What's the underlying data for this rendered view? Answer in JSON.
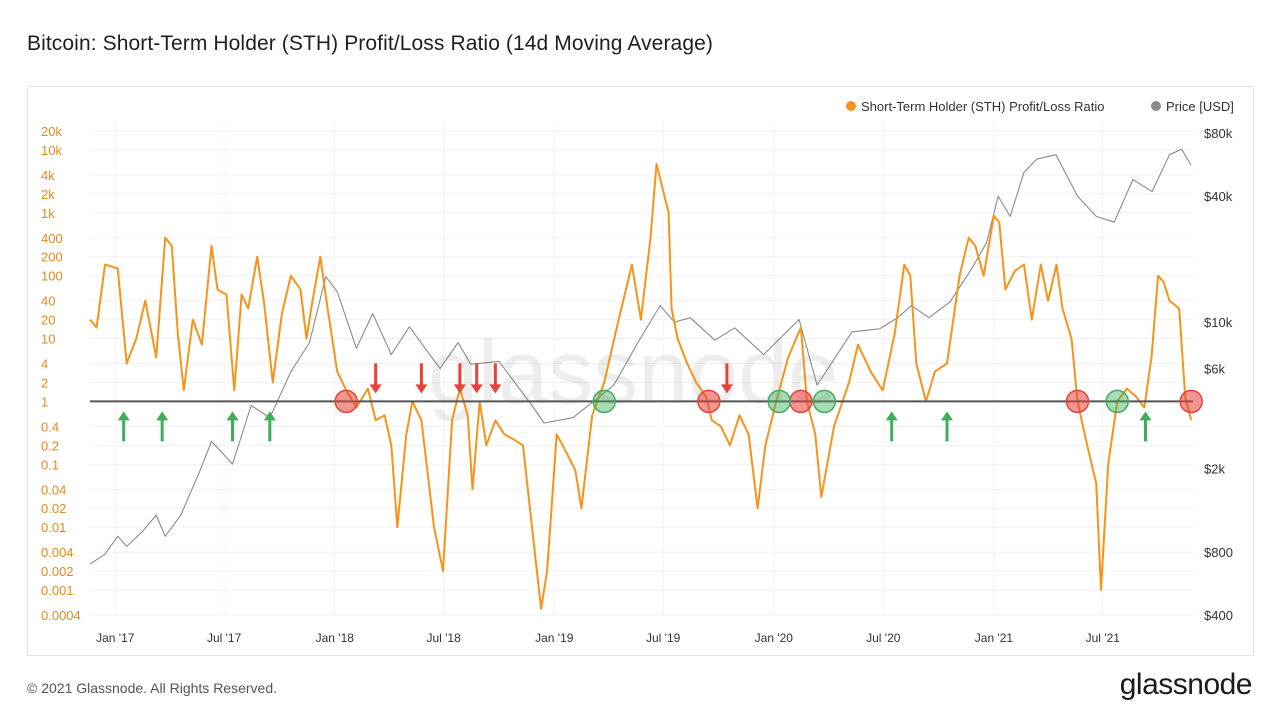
{
  "title": "Bitcoin: Short-Term Holder (STH) Profit/Loss Ratio (14d Moving Average)",
  "footer": "© 2021 Glassnode. All Rights Reserved.",
  "brand": "glassnode",
  "watermark": "glassnode",
  "colors": {
    "sth": "#f7931a",
    "price": "#8a8a8a",
    "baseline": "#555555",
    "red_marker": "#e8403a",
    "green_marker": "#3fae5a"
  },
  "chart_data": {
    "type": "line",
    "legend_position": "top-right",
    "grid": true,
    "left_axis": {
      "scale": "log",
      "ticks": [
        0.0004,
        0.001,
        0.002,
        0.004,
        0.01,
        0.02,
        0.04,
        0.1,
        0.2,
        0.4,
        1,
        2,
        4,
        10,
        20,
        40,
        100,
        200,
        400,
        1000,
        2000,
        4000,
        10000,
        20000
      ],
      "tick_labels": [
        "0.0004",
        "0.001",
        "0.002",
        "0.004",
        "0.01",
        "0.02",
        "0.04",
        "0.1",
        "0.2",
        "0.4",
        "1",
        "2",
        "4",
        "10",
        "20",
        "40",
        "100",
        "200",
        "400",
        "1k",
        "2k",
        "4k",
        "10k",
        "20k"
      ]
    },
    "right_axis": {
      "scale": "log",
      "ticks": [
        400,
        800,
        2000,
        6000,
        10000,
        40000,
        80000
      ],
      "tick_labels": [
        "$400",
        "$800",
        "$2k",
        "$6k",
        "$10k",
        "$40k",
        "$80k"
      ]
    },
    "x_axis": {
      "ticks": [
        "2017-01-01",
        "2017-07-01",
        "2018-01-01",
        "2018-07-01",
        "2019-01-01",
        "2019-07-01",
        "2020-01-01",
        "2020-07-01",
        "2021-01-01",
        "2021-07-01"
      ],
      "tick_labels": [
        "Jan '17",
        "Jul '17",
        "Jan '18",
        "Jul '18",
        "Jan '19",
        "Jul '19",
        "Jan '20",
        "Jul '20",
        "Jan '21",
        "Jul '21"
      ]
    },
    "series": [
      {
        "name": "Short-Term Holder (STH) Profit/Loss Ratio",
        "axis": "left",
        "points": [
          [
            "2016-11-20",
            20
          ],
          [
            "2016-12-01",
            15
          ],
          [
            "2016-12-15",
            150
          ],
          [
            "2017-01-05",
            130
          ],
          [
            "2017-01-20",
            4
          ],
          [
            "2017-02-05",
            10
          ],
          [
            "2017-02-20",
            40
          ],
          [
            "2017-03-10",
            5
          ],
          [
            "2017-03-25",
            400
          ],
          [
            "2017-04-05",
            300
          ],
          [
            "2017-04-15",
            12
          ],
          [
            "2017-04-25",
            1.5
          ],
          [
            "2017-05-10",
            20
          ],
          [
            "2017-05-25",
            8
          ],
          [
            "2017-06-10",
            300
          ],
          [
            "2017-06-20",
            60
          ],
          [
            "2017-07-05",
            50
          ],
          [
            "2017-07-18",
            1.5
          ],
          [
            "2017-07-30",
            50
          ],
          [
            "2017-08-10",
            30
          ],
          [
            "2017-08-25",
            200
          ],
          [
            "2017-09-05",
            40
          ],
          [
            "2017-09-20",
            2
          ],
          [
            "2017-10-05",
            25
          ],
          [
            "2017-10-20",
            100
          ],
          [
            "2017-11-05",
            60
          ],
          [
            "2017-11-15",
            10
          ],
          [
            "2017-11-25",
            40
          ],
          [
            "2017-12-08",
            200
          ],
          [
            "2017-12-20",
            30
          ],
          [
            "2018-01-05",
            3
          ],
          [
            "2018-01-20",
            1.5
          ],
          [
            "2018-02-06",
            0.8
          ],
          [
            "2018-02-25",
            1.6
          ],
          [
            "2018-03-10",
            0.5
          ],
          [
            "2018-03-25",
            0.6
          ],
          [
            "2018-04-05",
            0.2
          ],
          [
            "2018-04-15",
            0.01
          ],
          [
            "2018-04-30",
            0.3
          ],
          [
            "2018-05-10",
            1
          ],
          [
            "2018-05-25",
            0.5
          ],
          [
            "2018-06-15",
            0.01
          ],
          [
            "2018-06-30",
            0.002
          ],
          [
            "2018-07-15",
            0.5
          ],
          [
            "2018-07-28",
            1.6
          ],
          [
            "2018-08-10",
            0.6
          ],
          [
            "2018-08-18",
            0.04
          ],
          [
            "2018-08-30",
            1
          ],
          [
            "2018-09-10",
            0.2
          ],
          [
            "2018-09-25",
            0.5
          ],
          [
            "2018-10-10",
            0.3
          ],
          [
            "2018-10-25",
            0.25
          ],
          [
            "2018-11-10",
            0.2
          ],
          [
            "2018-11-25",
            0.01
          ],
          [
            "2018-12-10",
            0.0005
          ],
          [
            "2018-12-20",
            0.002
          ],
          [
            "2019-01-05",
            0.3
          ],
          [
            "2019-01-15",
            0.2
          ],
          [
            "2019-02-05",
            0.08
          ],
          [
            "2019-02-15",
            0.02
          ],
          [
            "2019-03-05",
            0.6
          ],
          [
            "2019-03-25",
            2
          ],
          [
            "2019-04-15",
            15
          ],
          [
            "2019-05-10",
            150
          ],
          [
            "2019-05-25",
            20
          ],
          [
            "2019-06-10",
            400
          ],
          [
            "2019-06-20",
            6000
          ],
          [
            "2019-07-10",
            1000
          ],
          [
            "2019-07-15",
            30
          ],
          [
            "2019-07-25",
            10
          ],
          [
            "2019-08-10",
            4
          ],
          [
            "2019-08-25",
            2
          ],
          [
            "2019-09-10",
            1.2
          ],
          [
            "2019-09-20",
            0.5
          ],
          [
            "2019-10-05",
            0.4
          ],
          [
            "2019-10-20",
            0.2
          ],
          [
            "2019-11-05",
            0.6
          ],
          [
            "2019-11-20",
            0.3
          ],
          [
            "2019-12-05",
            0.02
          ],
          [
            "2019-12-18",
            0.2
          ],
          [
            "2020-01-05",
            1
          ],
          [
            "2020-01-25",
            5
          ],
          [
            "2020-02-15",
            15
          ],
          [
            "2020-02-25",
            1
          ],
          [
            "2020-03-10",
            0.3
          ],
          [
            "2020-03-20",
            0.03
          ],
          [
            "2020-04-10",
            0.4
          ],
          [
            "2020-05-05",
            2
          ],
          [
            "2020-05-20",
            8
          ],
          [
            "2020-06-10",
            3
          ],
          [
            "2020-06-30",
            1.5
          ],
          [
            "2020-07-20",
            12
          ],
          [
            "2020-08-05",
            150
          ],
          [
            "2020-08-15",
            100
          ],
          [
            "2020-08-25",
            4
          ],
          [
            "2020-09-10",
            1
          ],
          [
            "2020-09-25",
            3
          ],
          [
            "2020-10-15",
            4
          ],
          [
            "2020-11-05",
            100
          ],
          [
            "2020-11-20",
            400
          ],
          [
            "2020-12-01",
            300
          ],
          [
            "2020-12-15",
            100
          ],
          [
            "2021-01-01",
            900
          ],
          [
            "2021-01-10",
            700
          ],
          [
            "2021-01-20",
            60
          ],
          [
            "2021-02-05",
            120
          ],
          [
            "2021-02-20",
            150
          ],
          [
            "2021-03-05",
            20
          ],
          [
            "2021-03-20",
            150
          ],
          [
            "2021-04-01",
            40
          ],
          [
            "2021-04-15",
            150
          ],
          [
            "2021-04-25",
            30
          ],
          [
            "2021-05-10",
            10
          ],
          [
            "2021-05-20",
            1
          ],
          [
            "2021-06-05",
            0.2
          ],
          [
            "2021-06-20",
            0.05
          ],
          [
            "2021-06-28",
            0.001
          ],
          [
            "2021-07-10",
            0.1
          ],
          [
            "2021-07-25",
            1
          ],
          [
            "2021-08-10",
            1.6
          ],
          [
            "2021-08-25",
            1.2
          ],
          [
            "2021-09-08",
            0.8
          ],
          [
            "2021-09-20",
            5
          ],
          [
            "2021-10-01",
            100
          ],
          [
            "2021-10-10",
            80
          ],
          [
            "2021-10-20",
            40
          ],
          [
            "2021-11-05",
            30
          ],
          [
            "2021-11-15",
            1.2
          ],
          [
            "2021-11-25",
            0.5
          ]
        ]
      },
      {
        "name": "Price [USD]",
        "axis": "right",
        "points": [
          [
            "2016-11-20",
            700
          ],
          [
            "2016-12-15",
            780
          ],
          [
            "2017-01-05",
            950
          ],
          [
            "2017-01-20",
            850
          ],
          [
            "2017-02-15",
            1000
          ],
          [
            "2017-03-10",
            1200
          ],
          [
            "2017-03-25",
            950
          ],
          [
            "2017-04-20",
            1200
          ],
          [
            "2017-05-20",
            1900
          ],
          [
            "2017-06-10",
            2700
          ],
          [
            "2017-07-15",
            2100
          ],
          [
            "2017-08-15",
            4000
          ],
          [
            "2017-09-15",
            3500
          ],
          [
            "2017-10-20",
            5800
          ],
          [
            "2017-11-20",
            8000
          ],
          [
            "2017-12-17",
            16500
          ],
          [
            "2018-01-05",
            14000
          ],
          [
            "2018-02-06",
            7500
          ],
          [
            "2018-03-05",
            11000
          ],
          [
            "2018-04-05",
            7000
          ],
          [
            "2018-05-05",
            9500
          ],
          [
            "2018-06-25",
            6000
          ],
          [
            "2018-07-25",
            8000
          ],
          [
            "2018-08-15",
            6300
          ],
          [
            "2018-10-01",
            6500
          ],
          [
            "2018-11-25",
            4000
          ],
          [
            "2018-12-15",
            3300
          ],
          [
            "2019-02-01",
            3500
          ],
          [
            "2019-04-10",
            5000
          ],
          [
            "2019-05-20",
            8000
          ],
          [
            "2019-06-26",
            12000
          ],
          [
            "2019-07-20",
            10000
          ],
          [
            "2019-08-15",
            10500
          ],
          [
            "2019-09-25",
            8200
          ],
          [
            "2019-10-28",
            9400
          ],
          [
            "2019-12-15",
            7000
          ],
          [
            "2020-02-12",
            10300
          ],
          [
            "2020-03-13",
            5000
          ],
          [
            "2020-05-10",
            9000
          ],
          [
            "2020-06-25",
            9300
          ],
          [
            "2020-07-25",
            10500
          ],
          [
            "2020-08-17",
            12000
          ],
          [
            "2020-09-15",
            10500
          ],
          [
            "2020-10-20",
            12500
          ],
          [
            "2020-11-25",
            18000
          ],
          [
            "2020-12-20",
            24000
          ],
          [
            "2021-01-08",
            40000
          ],
          [
            "2021-01-28",
            32000
          ],
          [
            "2021-02-20",
            52000
          ],
          [
            "2021-03-13",
            60000
          ],
          [
            "2021-04-14",
            63000
          ],
          [
            "2021-05-20",
            40000
          ],
          [
            "2021-06-20",
            32000
          ],
          [
            "2021-07-20",
            30000
          ],
          [
            "2021-08-20",
            48000
          ],
          [
            "2021-09-21",
            42000
          ],
          [
            "2021-10-20",
            63000
          ],
          [
            "2021-11-09",
            67000
          ],
          [
            "2021-11-25",
            56000
          ]
        ]
      }
    ],
    "markers": {
      "baseline_value": 1,
      "red_circles": [
        "2018-01-20",
        "2019-09-15",
        "2020-02-15",
        "2021-05-20",
        "2021-11-25"
      ],
      "green_circles": [
        "2019-03-25",
        "2020-01-10",
        "2020-03-25",
        "2021-07-25"
      ],
      "green_up_arrows": [
        "2017-01-15",
        "2017-03-20",
        "2017-07-15",
        "2017-09-15",
        "2020-07-15",
        "2020-10-15",
        "2021-09-10"
      ],
      "red_down_arrows": [
        "2018-03-10",
        "2018-05-25",
        "2018-07-28",
        "2018-08-25",
        "2018-09-25",
        "2019-10-15"
      ]
    }
  }
}
